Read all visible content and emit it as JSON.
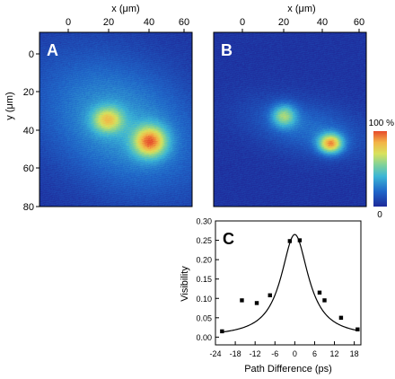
{
  "chart_data": [
    {
      "panel": "A",
      "type": "heatmap",
      "panel_label": "A",
      "xlabel": "x (μm)",
      "ylabel": "y (μm)",
      "xticks": [
        0,
        20,
        40,
        60
      ],
      "yticks": [
        0,
        20,
        40,
        60,
        80
      ],
      "xlim": [
        -8,
        64
      ],
      "ylim": [
        -8,
        80
      ],
      "blobs": [
        {
          "x": 30,
          "y": 38,
          "sx": 30,
          "sy": 21,
          "rot": 35,
          "amp": 0.3
        },
        {
          "x": 24,
          "y": 36,
          "sx": 5,
          "sy": 4.5,
          "rot": 0,
          "amp": 0.5
        },
        {
          "x": 44,
          "y": 47,
          "sx": 5.5,
          "sy": 5.5,
          "rot": 0,
          "amp": 0.7
        }
      ]
    },
    {
      "panel": "B",
      "type": "heatmap",
      "panel_label": "B",
      "xlabel": "x (μm)",
      "xticks": [
        0,
        20,
        40,
        60
      ],
      "xlim": [
        -8,
        64
      ],
      "ylim": [
        -8,
        80
      ],
      "blobs": [
        {
          "x": 36,
          "y": 40,
          "sx": 20,
          "sy": 9,
          "rot": 15,
          "amp": 0.18
        },
        {
          "x": 25,
          "y": 34,
          "sx": 4,
          "sy": 4,
          "rot": 0,
          "amp": 0.45
        },
        {
          "x": 47,
          "y": 48,
          "sx": 4,
          "sy": 3.5,
          "rot": 0,
          "amp": 0.75
        }
      ]
    },
    {
      "panel": "colorbar",
      "type": "colorbar",
      "top_label": "100 %",
      "bottom_label": "0"
    },
    {
      "panel": "C",
      "type": "scatter",
      "panel_label": "C",
      "xlabel": "Path Difference (ps)",
      "ylabel": "Visibility",
      "xlim": [
        -24,
        20
      ],
      "ylim": [
        -0.02,
        0.3
      ],
      "xticks": [
        -24,
        -18,
        -12,
        -6,
        0,
        6,
        12,
        18
      ],
      "yticks": [
        "0.00",
        "0.05",
        "0.10",
        "0.15",
        "0.20",
        "0.25",
        "0.30"
      ],
      "series": [
        {
          "x": [
            -22,
            -16,
            -11.5,
            -7.5,
            -1.5,
            1.5,
            7.5,
            9,
            14,
            19
          ],
          "y": [
            0.015,
            0.095,
            0.088,
            0.108,
            0.248,
            0.25,
            0.115,
            0.095,
            0.05,
            0.02
          ]
        }
      ],
      "fit": {
        "type": "lorentzian",
        "center": 0,
        "peak": 0.265,
        "hwhm": 5,
        "offset": 0.0
      }
    }
  ]
}
